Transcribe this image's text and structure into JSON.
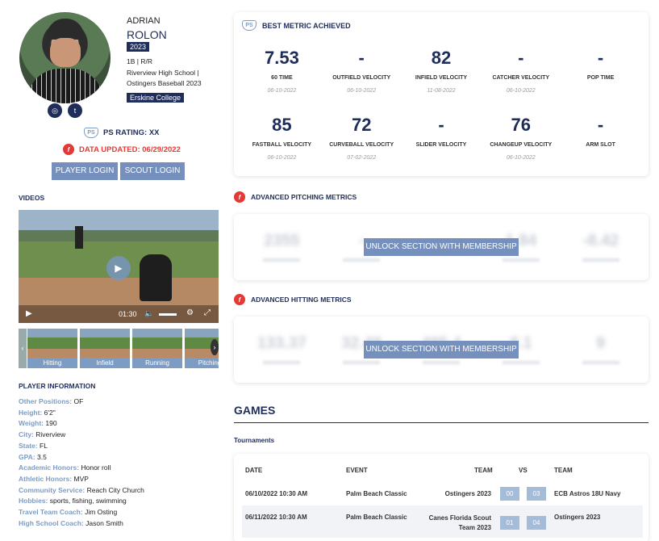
{
  "player": {
    "first_name": "ADRIAN",
    "last_name": "ROLON",
    "class_year": "2023",
    "position": "1B | R/R",
    "school_line1": "Riverview High School |",
    "school_line2": "Ostingers Baseball 2023",
    "commitment": "Erskine College",
    "ps_rating": "PS RATING: XX",
    "data_updated": "DATA UPDATED: 06/29/2022"
  },
  "social": {
    "instagram_icon": "instagram-icon",
    "twitter_icon": "twitter-icon"
  },
  "buttons": {
    "player_login": "PLAYER LOGIN",
    "scout_login": "SCOUT LOGIN"
  },
  "videos": {
    "heading": "VIDEOS",
    "time": "01:30",
    "thumbnails": [
      "Hitting",
      "Infield",
      "Running",
      "Pitching"
    ]
  },
  "player_info": {
    "heading": "PLAYER INFORMATION",
    "rows": [
      {
        "k": "Other Positions:",
        "v": "OF"
      },
      {
        "k": "Height:",
        "v": "6'2\""
      },
      {
        "k": "Weight:",
        "v": "190"
      },
      {
        "k": "City:",
        "v": "Riverview"
      },
      {
        "k": "State:",
        "v": "FL"
      },
      {
        "k": "GPA:",
        "v": "3.5"
      },
      {
        "k": "Academic Honors:",
        "v": "Honor roll"
      },
      {
        "k": "Athletic Honors:",
        "v": "MVP"
      },
      {
        "k": "Community Service:",
        "v": "Reach City Church"
      },
      {
        "k": "Hobbies:",
        "v": "sports, fishing, swimming"
      },
      {
        "k": "Travel Team Coach:",
        "v": "Jim Osting"
      },
      {
        "k": "High School Coach:",
        "v": "Jason Smith"
      }
    ]
  },
  "best_metric": {
    "heading": "BEST METRIC ACHIEVED",
    "row1": [
      {
        "val": "7.53",
        "lab": "60 TIME",
        "date": "06-10-2022"
      },
      {
        "val": "-",
        "lab": "OUTFIELD VELOCITY",
        "date": "06-10-2022"
      },
      {
        "val": "82",
        "lab": "INFIELD VELOCITY",
        "date": "11-08-2022"
      },
      {
        "val": "-",
        "lab": "CATCHER VELOCITY",
        "date": "06-10-2022"
      },
      {
        "val": "-",
        "lab": "POP TIME",
        "date": ""
      }
    ],
    "row2": [
      {
        "val": "85",
        "lab": "FASTBALL VELOCITY",
        "date": "06-10-2022"
      },
      {
        "val": "72",
        "lab": "CURVEBALL VELOCITY",
        "date": "07-02-2022"
      },
      {
        "val": "-",
        "lab": "SLIDER VELOCITY",
        "date": ""
      },
      {
        "val": "76",
        "lab": "CHANGEUP VELOCITY",
        "date": "06-10-2022"
      },
      {
        "val": "-",
        "lab": "ARM SLOT",
        "date": ""
      }
    ]
  },
  "pitching": {
    "heading": "ADVANCED PITCHING METRICS",
    "unlock": "UNLOCK SECTION WITH MEMBERSHIP",
    "blurred": [
      "2355",
      "-",
      "",
      "1.84",
      "-8.42"
    ]
  },
  "hitting": {
    "heading": "ADVANCED HITTING METRICS",
    "unlock": "UNLOCK SECTION WITH MEMBERSHIP",
    "blurred": [
      "133.37",
      "32.48",
      "495.4",
      "8.1",
      "9"
    ]
  },
  "games": {
    "heading": "GAMES",
    "sub": "Tournaments",
    "cols": {
      "date": "DATE",
      "event": "EVENT",
      "team": "TEAM",
      "vs": "VS",
      "team2": "TEAM"
    },
    "rows": [
      {
        "date": "06/10/2022 10:30 AM",
        "event": "Palm Beach Classic",
        "team": "Ostingers 2023",
        "s1": "00",
        "s2": "03",
        "opp": "ECB Astros 18U Navy"
      },
      {
        "date": "06/11/2022 10:30 AM",
        "event": "Palm Beach Classic",
        "team": "Canes Florida Scout Team 2023",
        "s1": "01",
        "s2": "04",
        "opp": "Ostingers 2023"
      }
    ]
  }
}
